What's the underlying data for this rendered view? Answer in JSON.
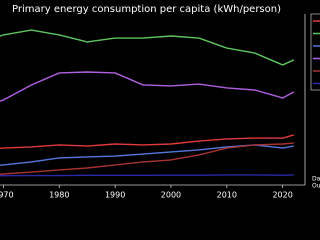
{
  "chart_data": {
    "type": "line",
    "title": "Primary energy consumption per capita (kWh/person)",
    "x": [
      1965,
      1970,
      1975,
      1980,
      1985,
      1990,
      1995,
      2000,
      2005,
      2010,
      2015,
      2020,
      2022
    ],
    "series": [
      {
        "color": "#e03a3a",
        "values": [
          18900,
          19900,
          20500,
          21600,
          21000,
          22100,
          21600,
          22100,
          23700,
          24800,
          25300,
          25300,
          27000
        ]
      },
      {
        "color": "#5ec45e",
        "values": [
          75500,
          80900,
          83500,
          80900,
          77100,
          79200,
          79200,
          80300,
          79200,
          73800,
          71100,
          64700,
          67400
        ]
      },
      {
        "color": "#5577dd",
        "values": [
          9700,
          10800,
          12400,
          14600,
          15100,
          15600,
          16700,
          17800,
          18900,
          20500,
          21600,
          19900,
          21000
        ]
      },
      {
        "color": "#b060e0",
        "values": [
          41500,
          45800,
          53900,
          60400,
          60900,
          60400,
          53900,
          53400,
          54400,
          52300,
          51200,
          46900,
          50100
        ]
      },
      {
        "color": "#a83232",
        "values": [
          4850,
          5930,
          7000,
          8100,
          9160,
          10800,
          12400,
          13500,
          16200,
          19900,
          21600,
          22100,
          22600
        ]
      },
      {
        "color": "#2a2aa8",
        "values": [
          4900,
          5000,
          5100,
          5100,
          5200,
          5200,
          5200,
          5300,
          5300,
          5400,
          5400,
          5300,
          5400
        ]
      }
    ],
    "xlim": [
      1965,
      2024
    ],
    "ylim": [
      0,
      90000
    ],
    "xticks": [
      1970,
      1980,
      1990,
      2000,
      2010,
      2020
    ],
    "notes": [
      "Da",
      "Ou"
    ]
  }
}
